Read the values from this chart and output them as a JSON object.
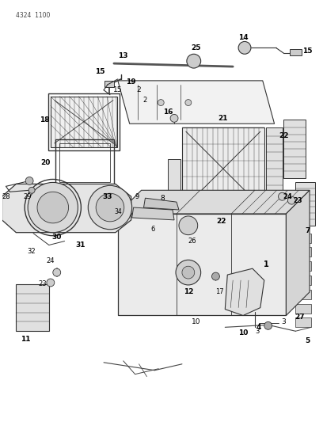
{
  "header_code": "4324 1100",
  "bg_color": "#ffffff",
  "line_color": "#333333",
  "label_color": "#000000",
  "fig_width": 4.08,
  "fig_height": 5.33,
  "dpi": 100
}
